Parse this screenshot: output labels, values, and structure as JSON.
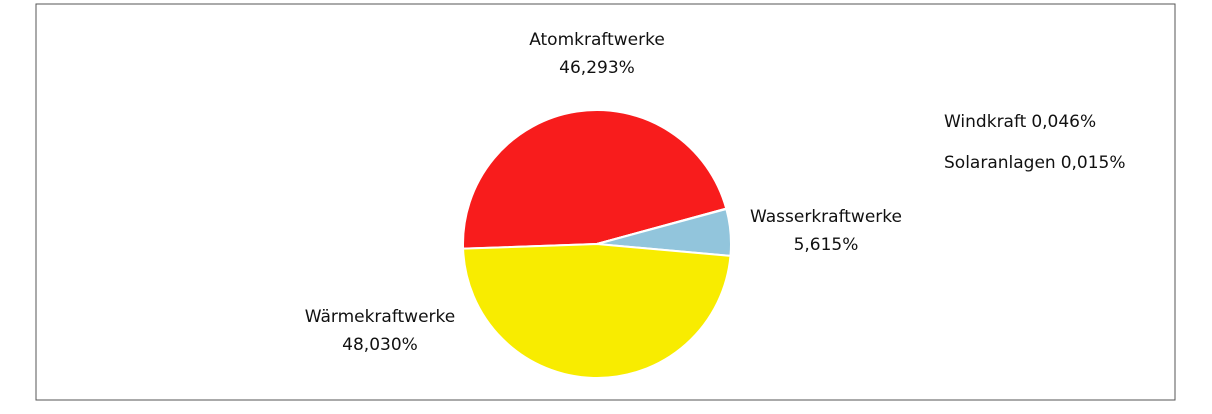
{
  "chart_data": {
    "type": "pie",
    "categories": [
      "Atomkraftwerke",
      "Windkraft",
      "Solaranlagen",
      "Wasserkraftwerke",
      "Wärmekraftwerke"
    ],
    "values": [
      46.293,
      0.046,
      0.015,
      5.615,
      48.03
    ],
    "value_labels": [
      "46,293%",
      "0,046%",
      "0,015%",
      "5,615%",
      "48,030%"
    ],
    "colors": [
      "#f81c1c",
      "#2e7d32",
      "#ff9800",
      "#92c5dc",
      "#f8ec00"
    ]
  }
}
